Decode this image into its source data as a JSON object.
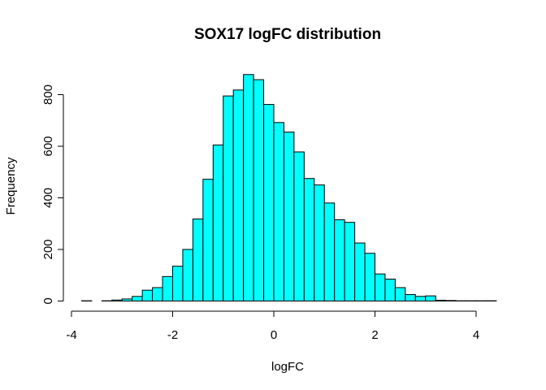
{
  "chart_data": {
    "type": "bar",
    "title": "SOX17 logFC distribution",
    "xlabel": "logFC",
    "ylabel": "Frequency",
    "bin_width": 0.2,
    "bin_edges_start": -3.8,
    "bin_edges_end": 4.4,
    "x_ticks": [
      -4,
      -2,
      0,
      2,
      4
    ],
    "x_tick_labels": [
      "-4",
      "-2",
      "0",
      "2",
      "4"
    ],
    "y_ticks": [
      0,
      200,
      400,
      600,
      800
    ],
    "y_tick_labels": [
      "0",
      "200",
      "400",
      "600",
      "800"
    ],
    "xlim": [
      -4,
      4.4
    ],
    "ylim": [
      0,
      900
    ],
    "bar_color": "#00FFFF",
    "grid": false,
    "legend": "none",
    "values": [
      1,
      0,
      1,
      4,
      8,
      18,
      42,
      52,
      95,
      135,
      200,
      318,
      472,
      605,
      795,
      818,
      878,
      858,
      762,
      692,
      655,
      578,
      475,
      450,
      380,
      315,
      305,
      225,
      185,
      105,
      85,
      52,
      25,
      18,
      20,
      3,
      2,
      1,
      1,
      1,
      1
    ]
  }
}
